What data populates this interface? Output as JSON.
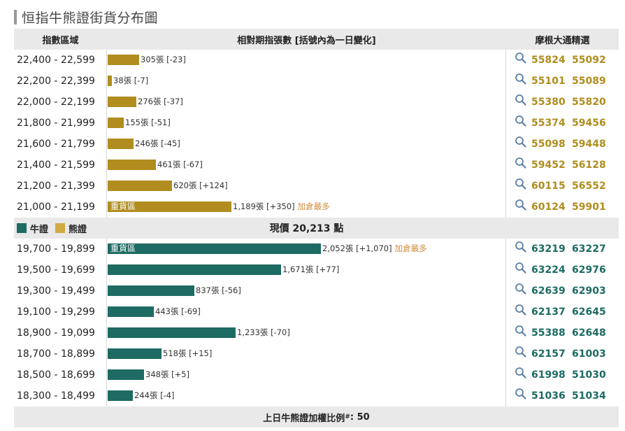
{
  "title": "恒指牛熊證街貨分布圖",
  "header": {
    "range": "指數區域",
    "dist": "相對期指張數 [括號內為一日變化]",
    "picks": "摩根大通精選"
  },
  "colors": {
    "bear": "#b08d1e",
    "bull": "#1d6b62",
    "note": "#d38b3a"
  },
  "bear_rows": [
    {
      "range": "22,400 - 22,599",
      "label": "305張 [-23]",
      "value": 305,
      "zone": "",
      "note": "",
      "codes": [
        "55824",
        "55092"
      ]
    },
    {
      "range": "22,200 - 22,399",
      "label": "38張 [-7]",
      "value": 38,
      "zone": "",
      "note": "",
      "codes": [
        "55101",
        "55089"
      ]
    },
    {
      "range": "22,000 - 22,199",
      "label": "276張 [-37]",
      "value": 276,
      "zone": "",
      "note": "",
      "codes": [
        "55380",
        "55820"
      ]
    },
    {
      "range": "21,800 - 21,999",
      "label": "155張 [-51]",
      "value": 155,
      "zone": "",
      "note": "",
      "codes": [
        "55374",
        "59456"
      ]
    },
    {
      "range": "21,600 - 21,799",
      "label": "246張 [-45]",
      "value": 246,
      "zone": "",
      "note": "",
      "codes": [
        "55098",
        "59448"
      ]
    },
    {
      "range": "21,400 - 21,599",
      "label": "461張 [-67]",
      "value": 461,
      "zone": "",
      "note": "",
      "codes": [
        "59452",
        "56128"
      ]
    },
    {
      "range": "21,200 - 21,399",
      "label": "620張 [+124]",
      "value": 620,
      "zone": "",
      "note": "",
      "codes": [
        "60115",
        "56552"
      ]
    },
    {
      "range": "21,000 - 21,199",
      "label": "1,189張 [+350]",
      "value": 1189,
      "zone": "重貨區",
      "note": "加倉最多",
      "codes": [
        "60124",
        "59901"
      ]
    }
  ],
  "legend": {
    "bull": "牛證",
    "bear": "熊證"
  },
  "current_price": "現價 20,213 點",
  "bull_rows": [
    {
      "range": "19,700 - 19,899",
      "label": "2,052張 [+1,070]",
      "value": 2052,
      "zone": "重貨區",
      "note": "加倉最多",
      "codes": [
        "63219",
        "63227"
      ]
    },
    {
      "range": "19,500 - 19,699",
      "label": "1,671張 [+77]",
      "value": 1671,
      "zone": "",
      "note": "",
      "codes": [
        "63224",
        "62976"
      ]
    },
    {
      "range": "19,300 - 19,499",
      "label": "837張 [-56]",
      "value": 837,
      "zone": "",
      "note": "",
      "codes": [
        "62639",
        "62903"
      ]
    },
    {
      "range": "19,100 - 19,299",
      "label": "443張 [-69]",
      "value": 443,
      "zone": "",
      "note": "",
      "codes": [
        "62137",
        "62645"
      ]
    },
    {
      "range": "18,900 - 19,099",
      "label": "1,233張 [-70]",
      "value": 1233,
      "zone": "",
      "note": "",
      "codes": [
        "55388",
        "62648"
      ]
    },
    {
      "range": "18,700 - 18,899",
      "label": "518張 [+15]",
      "value": 518,
      "zone": "",
      "note": "",
      "codes": [
        "62157",
        "61003"
      ]
    },
    {
      "range": "18,500 - 18,699",
      "label": "348張 [+5]",
      "value": 348,
      "zone": "",
      "note": "",
      "codes": [
        "61998",
        "51030"
      ]
    },
    {
      "range": "18,300 - 18,499",
      "label": "244張 [-4]",
      "value": 244,
      "zone": "",
      "note": "",
      "codes": [
        "51036",
        "51034"
      ]
    }
  ],
  "footer": {
    "label": "上日牛熊證加權比例",
    "sup": "#",
    "value": ": 50"
  }
}
